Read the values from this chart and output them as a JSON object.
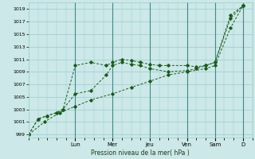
{
  "background_color": "#cce8e8",
  "grid_color": "#99cccc",
  "line_color": "#1a5c1a",
  "xlabel": "Pression niveau de la mer( hPa )",
  "ylim": [
    998.5,
    1020
  ],
  "yticks": [
    999,
    1001,
    1003,
    1005,
    1007,
    1009,
    1011,
    1013,
    1015,
    1017,
    1019
  ],
  "xlim": [
    0,
    7.2
  ],
  "day_labels": [
    "Lun",
    "Mer",
    "Jeu",
    "Ven",
    "Sam",
    "D"
  ],
  "day_positions": [
    1.5,
    2.7,
    3.9,
    5.1,
    6.0,
    6.9
  ],
  "day_vlines": [
    1.5,
    2.7,
    3.9,
    5.1,
    6.0,
    6.9
  ],
  "series1_x": [
    0.0,
    0.3,
    0.6,
    0.9,
    1.1,
    1.5,
    2.0,
    2.5,
    2.7,
    3.0,
    3.3,
    3.6,
    3.9,
    4.2,
    4.5,
    5.1,
    5.4,
    5.7,
    6.0,
    6.5,
    6.9
  ],
  "series1_y": [
    999.0,
    1001.5,
    1002.0,
    1002.5,
    1003.0,
    1010.0,
    1010.5,
    1010.0,
    1010.5,
    1011.0,
    1010.8,
    1010.5,
    1010.2,
    1010.0,
    1010.0,
    1010.0,
    1009.8,
    1010.0,
    1010.5,
    1018.0,
    1019.5
  ],
  "series2_x": [
    0.0,
    0.5,
    1.0,
    1.5,
    2.0,
    2.7,
    3.3,
    3.9,
    4.5,
    5.1,
    5.7,
    6.0,
    6.5,
    6.9
  ],
  "series2_y": [
    999.0,
    1001.0,
    1002.5,
    1003.5,
    1004.5,
    1005.5,
    1006.5,
    1007.5,
    1008.5,
    1009.0,
    1009.5,
    1010.0,
    1016.0,
    1019.5
  ],
  "series3_x": [
    0.0,
    0.3,
    0.6,
    0.9,
    1.1,
    1.5,
    2.0,
    2.5,
    2.7,
    3.0,
    3.3,
    3.6,
    3.9,
    4.5,
    5.1,
    5.4,
    5.7,
    6.0,
    6.5,
    6.9
  ],
  "series3_y": [
    999.0,
    1001.5,
    1002.0,
    1002.5,
    1003.0,
    1005.5,
    1006.0,
    1008.5,
    1010.0,
    1010.5,
    1010.2,
    1010.0,
    1009.5,
    1009.0,
    1009.2,
    1009.5,
    1010.0,
    1010.5,
    1017.5,
    1019.5
  ]
}
